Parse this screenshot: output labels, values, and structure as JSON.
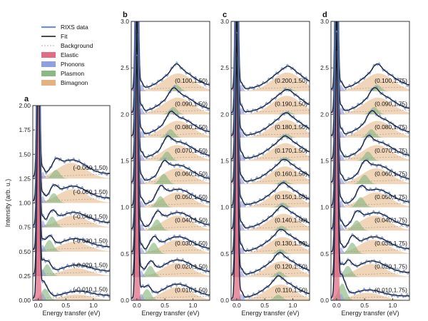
{
  "chart_data": {
    "type": "line",
    "legend": {
      "placement": "top-left",
      "entries": [
        {
          "key": "rixs",
          "label": "RIXS data",
          "style": "line",
          "color": "#6f8fd6"
        },
        {
          "key": "fit",
          "label": "Fit",
          "style": "line",
          "color": "#111111"
        },
        {
          "key": "background",
          "label": "Background",
          "style": "dashed",
          "color": "#9a9a9a"
        },
        {
          "key": "elastic",
          "label": "Elastic",
          "style": "patch",
          "color": "#e06d84"
        },
        {
          "key": "phonons",
          "label": "Phonons",
          "style": "patch",
          "color": "#8f9fe0"
        },
        {
          "key": "plasmon",
          "label": "Plasmon",
          "style": "patch",
          "color": "#8cb883"
        },
        {
          "key": "bimagnon",
          "label": "Bimagnon",
          "style": "patch",
          "color": "#e3b27e"
        }
      ]
    },
    "colors": {
      "elastic": "#e06d84",
      "phonons": "#8f9fe0",
      "plasmon": "#8cb883",
      "bimagnon": "#e3b27e",
      "fit": "#111111",
      "rixs": "#6f8fd6",
      "background": "#9a9a9a"
    },
    "xlabel": "Energy transfer (eV)",
    "ylabel": "Intensity (arb. u.)",
    "xlim": [
      -0.1,
      1.3
    ],
    "xticks": [
      "0.0",
      "0.5",
      "1.0"
    ],
    "panels": [
      {
        "letter": "a",
        "ylim": [
          0,
          2.0
        ],
        "yticks": [
          "0.00",
          "0.25",
          "0.50",
          "0.75",
          "1.00",
          "1.25",
          "1.50",
          "1.75",
          "2.00"
        ],
        "offset_step": 0.25,
        "curves": [
          {
            "label": "(-0.010,1.50)",
            "plasmon_center": 0.12,
            "plasmon_height": 0.12,
            "bimagnon_center": 0.7,
            "bimagnon_height": 0.06
          },
          {
            "label": "(-0.020,1.50)",
            "plasmon_center": 0.16,
            "plasmon_height": 0.12,
            "bimagnon_center": 0.68,
            "bimagnon_height": 0.08
          },
          {
            "label": "(-0.030,1.50)",
            "plasmon_center": 0.2,
            "plasmon_height": 0.12,
            "bimagnon_center": 0.65,
            "bimagnon_height": 0.1
          },
          {
            "label": "(-0.040,1.50)",
            "plasmon_center": 0.25,
            "plasmon_height": 0.11,
            "bimagnon_center": 0.63,
            "bimagnon_height": 0.12
          },
          {
            "label": "(-0.050,1.50)",
            "plasmon_center": 0.28,
            "plasmon_height": 0.1,
            "bimagnon_center": 0.62,
            "bimagnon_height": 0.14
          },
          {
            "label": "(-0.060,1.50)",
            "plasmon_center": 0.32,
            "plasmon_height": 0.09,
            "bimagnon_center": 0.6,
            "bimagnon_height": 0.16
          }
        ]
      },
      {
        "letter": "b",
        "ylim": [
          0,
          3.0
        ],
        "yticks": [
          "0.0",
          "0.5",
          "1.0",
          "1.5",
          "2.0",
          "2.5",
          "3.0"
        ],
        "offset_step": 0.25,
        "curves": [
          {
            "label": "(0.010,1.50)",
            "plasmon_center": 0.18,
            "plasmon_height": 0.12,
            "bimagnon_center": 0.72,
            "bimagnon_height": 0.14
          },
          {
            "label": "(0.020,1.50)",
            "plasmon_center": 0.24,
            "plasmon_height": 0.12,
            "bimagnon_center": 0.72,
            "bimagnon_height": 0.15
          },
          {
            "label": "(0.030,1.50)",
            "plasmon_center": 0.3,
            "plasmon_height": 0.12,
            "bimagnon_center": 0.72,
            "bimagnon_height": 0.15
          },
          {
            "label": "(0.040,1.50)",
            "plasmon_center": 0.36,
            "plasmon_height": 0.12,
            "bimagnon_center": 0.72,
            "bimagnon_height": 0.16
          },
          {
            "label": "(0.050,1.50)",
            "plasmon_center": 0.42,
            "plasmon_height": 0.12,
            "bimagnon_center": 0.72,
            "bimagnon_height": 0.16
          },
          {
            "label": "(0.060,1.50)",
            "plasmon_center": 0.48,
            "plasmon_height": 0.11,
            "bimagnon_center": 0.72,
            "bimagnon_height": 0.17
          },
          {
            "label": "(0.070,1.50)",
            "plasmon_center": 0.54,
            "plasmon_height": 0.1,
            "bimagnon_center": 0.72,
            "bimagnon_height": 0.17
          },
          {
            "label": "(0.080,1.50)",
            "plasmon_center": 0.6,
            "plasmon_height": 0.09,
            "bimagnon_center": 0.73,
            "bimagnon_height": 0.18
          },
          {
            "label": "(0.090,1.50)",
            "plasmon_center": 0.65,
            "plasmon_height": 0.08,
            "bimagnon_center": 0.73,
            "bimagnon_height": 0.18
          },
          {
            "label": "(0.100,1.50)",
            "plasmon_center": 0.7,
            "plasmon_height": 0.07,
            "bimagnon_center": 0.74,
            "bimagnon_height": 0.19
          }
        ]
      },
      {
        "letter": "c",
        "ylim": [
          0,
          3.0
        ],
        "yticks": [
          "0.0",
          "0.5",
          "1.0",
          "1.5",
          "2.0",
          "2.5",
          "3.0"
        ],
        "offset_step": 0.25,
        "curves": [
          {
            "label": "(0.110,1.50)",
            "plasmon_center": 0.74,
            "plasmon_height": 0.06,
            "bimagnon_center": 0.78,
            "bimagnon_height": 0.17
          },
          {
            "label": "(0.120,1.50)",
            "plasmon_center": 0.76,
            "plasmon_height": 0.06,
            "bimagnon_center": 0.8,
            "bimagnon_height": 0.17
          },
          {
            "label": "(0.130,1.50)",
            "plasmon_center": 0.78,
            "plasmon_height": 0.05,
            "bimagnon_center": 0.82,
            "bimagnon_height": 0.18
          },
          {
            "label": "(0.140,1.50)",
            "plasmon_center": 0.8,
            "plasmon_height": 0.05,
            "bimagnon_center": 0.84,
            "bimagnon_height": 0.18
          },
          {
            "label": "(0.150,1.50)",
            "plasmon_center": 0.82,
            "plasmon_height": 0.05,
            "bimagnon_center": 0.85,
            "bimagnon_height": 0.18
          },
          {
            "label": "(0.160,1.50)",
            "plasmon_center": 0.84,
            "plasmon_height": 0.04,
            "bimagnon_center": 0.86,
            "bimagnon_height": 0.19
          },
          {
            "label": "(0.170,1.50)",
            "plasmon_center": 0.86,
            "plasmon_height": 0.04,
            "bimagnon_center": 0.87,
            "bimagnon_height": 0.19
          },
          {
            "label": "(0.180,1.50)",
            "plasmon_center": 0.88,
            "plasmon_height": 0.04,
            "bimagnon_center": 0.88,
            "bimagnon_height": 0.19
          },
          {
            "label": "(0.190,1.50)",
            "plasmon_center": 0.9,
            "plasmon_height": 0.03,
            "bimagnon_center": 0.89,
            "bimagnon_height": 0.2
          },
          {
            "label": "(0.200,1.50)",
            "plasmon_center": 0.92,
            "plasmon_height": 0.03,
            "bimagnon_center": 0.9,
            "bimagnon_height": 0.2
          }
        ]
      },
      {
        "letter": "d",
        "ylim": [
          0,
          3.0
        ],
        "yticks": [
          "0.0",
          "0.5",
          "1.0",
          "1.5",
          "2.0",
          "2.5",
          "3.0"
        ],
        "offset_step": 0.25,
        "curves": [
          {
            "label": "(0.010,1.75)",
            "plasmon_center": 0.1,
            "plasmon_height": 0.18,
            "bimagnon_center": 0.55,
            "bimagnon_height": 0.08
          },
          {
            "label": "(0.020,1.75)",
            "plasmon_center": 0.2,
            "plasmon_height": 0.12,
            "bimagnon_center": 0.62,
            "bimagnon_height": 0.14
          },
          {
            "label": "(0.030,1.75)",
            "plasmon_center": 0.28,
            "plasmon_height": 0.12,
            "bimagnon_center": 0.66,
            "bimagnon_height": 0.15
          },
          {
            "label": "(0.040,1.75)",
            "plasmon_center": 0.36,
            "plasmon_height": 0.11,
            "bimagnon_center": 0.68,
            "bimagnon_height": 0.16
          },
          {
            "label": "(0.050,1.75)",
            "plasmon_center": 0.43,
            "plasmon_height": 0.11,
            "bimagnon_center": 0.7,
            "bimagnon_height": 0.16
          },
          {
            "label": "(0.060,1.75)",
            "plasmon_center": 0.5,
            "plasmon_height": 0.1,
            "bimagnon_center": 0.71,
            "bimagnon_height": 0.17
          },
          {
            "label": "(0.070,1.75)",
            "plasmon_center": 0.56,
            "plasmon_height": 0.1,
            "bimagnon_center": 0.72,
            "bimagnon_height": 0.17
          },
          {
            "label": "(0.080,1.75)",
            "plasmon_center": 0.62,
            "plasmon_height": 0.09,
            "bimagnon_center": 0.73,
            "bimagnon_height": 0.18
          },
          {
            "label": "(0.090,1.75)",
            "plasmon_center": 0.67,
            "plasmon_height": 0.08,
            "bimagnon_center": 0.74,
            "bimagnon_height": 0.18
          },
          {
            "label": "(0.100,1.75)",
            "plasmon_center": 0.72,
            "plasmon_height": 0.07,
            "bimagnon_center": 0.75,
            "bimagnon_height": 0.19
          }
        ]
      }
    ]
  }
}
